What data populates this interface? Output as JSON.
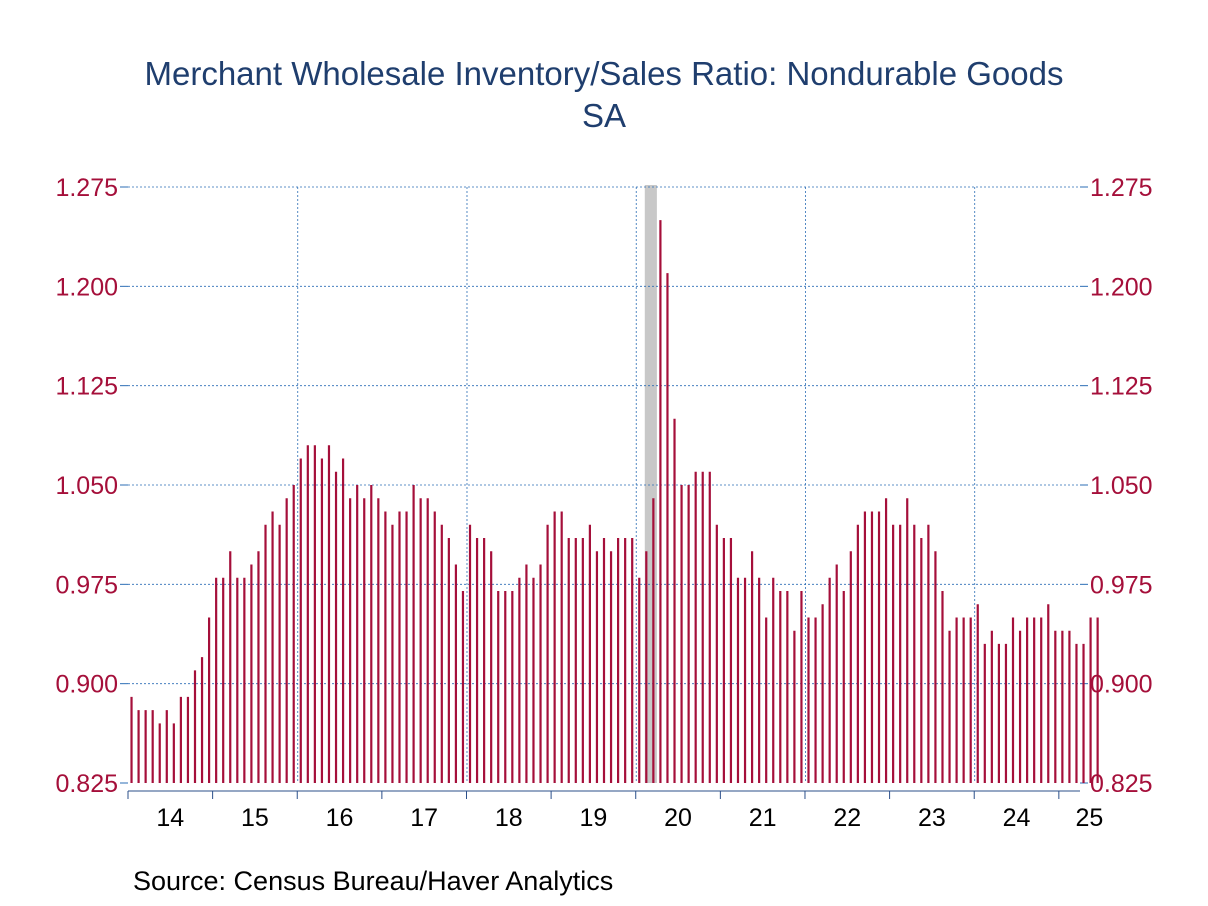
{
  "chart_data": {
    "type": "bar",
    "title": "Merchant Wholesale Inventory/Sales Ratio: Nondurable Goods",
    "subtitle": "SA",
    "source": "Source:  Census Bureau/Haver Analytics",
    "y_ticks": [
      "1.275",
      "1.200",
      "1.125",
      "1.050",
      "0.975",
      "0.900",
      "0.825"
    ],
    "ylim": [
      0.825,
      1.275
    ],
    "x_tick_labels": [
      "14",
      "15",
      "16",
      "17",
      "18",
      "19",
      "20",
      "21",
      "22",
      "23",
      "24",
      "25"
    ],
    "x_start": "2014-01",
    "x_end": "2025-03",
    "grid": true,
    "recession_shading": {
      "start": "2020-02",
      "end": "2020-04"
    },
    "colors": {
      "bars": "#a50f3a",
      "title": "#1f3e6e",
      "ticks": "#a50f3a",
      "grid": "#2b6db5",
      "recession": "#c8c8c8"
    },
    "series": [
      {
        "values": [
          0.89,
          0.88,
          0.88,
          0.88,
          0.87,
          0.88,
          0.87,
          0.89,
          0.89,
          0.91,
          0.92,
          0.95,
          0.98,
          0.98,
          1.0,
          0.98,
          0.98,
          0.99,
          1.0,
          1.02,
          1.03,
          1.02,
          1.04,
          1.05,
          1.07,
          1.08,
          1.08,
          1.07,
          1.08,
          1.06,
          1.07,
          1.04,
          1.05,
          1.04,
          1.05,
          1.04,
          1.03,
          1.02,
          1.03,
          1.03,
          1.05,
          1.04,
          1.04,
          1.03,
          1.02,
          1.01,
          0.99,
          0.97,
          1.02,
          1.01,
          1.01,
          1.0,
          0.97,
          0.97,
          0.97,
          0.98,
          0.99,
          0.98,
          0.99,
          1.02,
          1.03,
          1.03,
          1.01,
          1.01,
          1.01,
          1.02,
          1.0,
          1.01,
          1.0,
          1.01,
          1.01,
          1.01,
          0.98,
          1.0,
          1.04,
          1.25,
          1.21,
          1.1,
          1.05,
          1.05,
          1.06,
          1.06,
          1.06,
          1.02,
          1.01,
          1.01,
          0.98,
          0.98,
          1.0,
          0.98,
          0.95,
          0.98,
          0.97,
          0.97,
          0.94,
          0.97,
          0.95,
          0.95,
          0.96,
          0.98,
          0.99,
          0.97,
          1.0,
          1.02,
          1.03,
          1.03,
          1.03,
          1.04,
          1.02,
          1.02,
          1.04,
          1.02,
          1.01,
          1.02,
          1.0,
          0.97,
          0.94,
          0.95,
          0.95,
          0.95,
          0.96,
          0.93,
          0.94,
          0.93,
          0.93,
          0.95,
          0.94,
          0.95,
          0.95,
          0.95,
          0.96,
          0.94,
          0.94,
          0.94,
          0.93,
          0.93,
          0.95,
          0.95
        ]
      }
    ]
  }
}
